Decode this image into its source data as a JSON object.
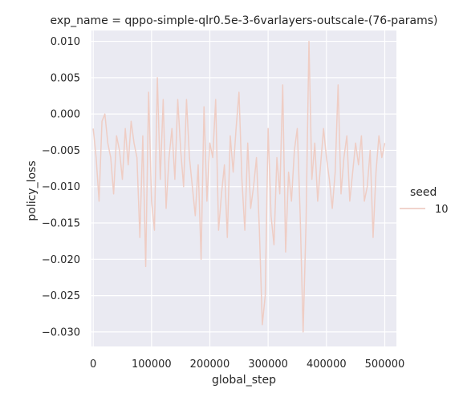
{
  "chart_data": {
    "type": "line",
    "title": "exp_name = qppo-simple-qlr0.5e-3-6varlayers-outscale-(76-params)",
    "xlabel": "global_step",
    "ylabel": "policy_loss",
    "xlim": [
      -3000,
      520000
    ],
    "ylim": [
      -0.032,
      0.0115
    ],
    "x_ticks": [
      0,
      100000,
      200000,
      300000,
      400000,
      500000
    ],
    "x_tick_labels": [
      "0",
      "100000",
      "200000",
      "300000",
      "400000",
      "500000"
    ],
    "y_ticks": [
      0.01,
      0.005,
      0.0,
      -0.005,
      -0.01,
      -0.015,
      -0.02,
      -0.025,
      -0.03
    ],
    "y_tick_labels": [
      "0.010",
      "0.005",
      "0.000",
      "−0.005",
      "−0.010",
      "−0.015",
      "−0.020",
      "−0.025",
      "−0.030"
    ],
    "grid": true,
    "background": "#eaeaf2",
    "legend": {
      "title": "seed",
      "placement": "right",
      "entries": [
        "10"
      ]
    },
    "series": [
      {
        "name": "10",
        "color": "#efcdc4",
        "x": [
          0,
          5000,
          10000,
          15000,
          20000,
          25000,
          30000,
          35000,
          40000,
          45000,
          50000,
          55000,
          60000,
          65000,
          70000,
          75000,
          80000,
          85000,
          90000,
          95000,
          100000,
          105000,
          110000,
          115000,
          120000,
          125000,
          130000,
          135000,
          140000,
          145000,
          150000,
          155000,
          160000,
          165000,
          170000,
          175000,
          180000,
          185000,
          190000,
          195000,
          200000,
          205000,
          210000,
          215000,
          220000,
          225000,
          230000,
          235000,
          240000,
          245000,
          250000,
          255000,
          260000,
          265000,
          270000,
          275000,
          280000,
          285000,
          290000,
          295000,
          300000,
          305000,
          310000,
          315000,
          320000,
          325000,
          330000,
          335000,
          340000,
          345000,
          350000,
          355000,
          360000,
          365000,
          370000,
          375000,
          380000,
          385000,
          390000,
          395000,
          400000,
          405000,
          410000,
          415000,
          420000,
          425000,
          430000,
          435000,
          440000,
          445000,
          450000,
          455000,
          460000,
          465000,
          470000,
          475000,
          480000,
          485000,
          490000,
          495000,
          500000
        ],
        "values": [
          -0.002,
          -0.006,
          -0.012,
          -0.001,
          0.0,
          -0.004,
          -0.006,
          -0.011,
          -0.003,
          -0.005,
          -0.009,
          -0.002,
          -0.007,
          -0.001,
          -0.004,
          -0.006,
          -0.017,
          -0.003,
          -0.021,
          0.003,
          -0.012,
          -0.016,
          0.005,
          -0.009,
          0.002,
          -0.013,
          -0.006,
          -0.002,
          -0.009,
          0.002,
          -0.005,
          -0.01,
          0.002,
          -0.006,
          -0.01,
          -0.014,
          -0.007,
          -0.02,
          0.001,
          -0.012,
          -0.004,
          -0.006,
          0.002,
          -0.016,
          -0.011,
          -0.007,
          -0.017,
          -0.003,
          -0.008,
          -0.002,
          0.003,
          -0.009,
          -0.016,
          -0.004,
          -0.013,
          -0.01,
          -0.006,
          -0.016,
          -0.029,
          -0.025,
          -0.002,
          -0.014,
          -0.018,
          -0.006,
          -0.011,
          0.004,
          -0.019,
          -0.008,
          -0.012,
          -0.005,
          -0.002,
          -0.014,
          -0.03,
          -0.015,
          0.01,
          -0.009,
          -0.004,
          -0.012,
          -0.007,
          -0.002,
          -0.006,
          -0.009,
          -0.013,
          -0.008,
          0.004,
          -0.011,
          -0.006,
          -0.003,
          -0.012,
          -0.008,
          -0.004,
          -0.007,
          -0.003,
          -0.012,
          -0.01,
          -0.005,
          -0.017,
          -0.008,
          -0.003,
          -0.006,
          -0.004
        ]
      }
    ]
  }
}
